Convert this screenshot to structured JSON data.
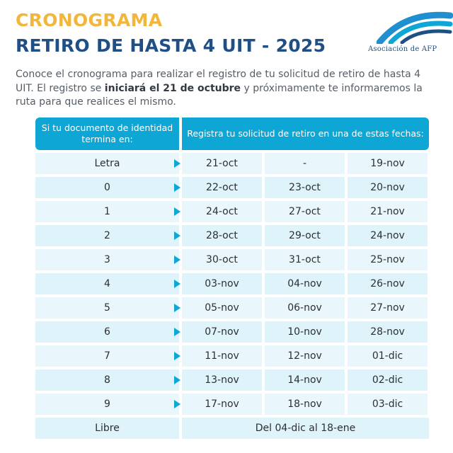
{
  "header": {
    "title_1": "CRONOGRAMA",
    "title_2": "RETIRO DE HASTA 4 UIT - 2025",
    "logo_text": "Asociación de AFP"
  },
  "intro": {
    "part_1": "Conoce el cronograma para realizar el registro de tu solicitud de retiro de hasta 4 UIT. El registro se ",
    "bold": "iniciará el 21 de octubre",
    "part_2": " y próximamente te informaremos la ruta para que realices el mismo."
  },
  "table": {
    "header_left": "Si tu documento de identidad termina en:",
    "header_right": "Registra tu solicitud de retiro en una de estas fechas:",
    "rows": [
      {
        "doc": "Letra",
        "d1": "21-oct",
        "d2": "-",
        "d3": "19-nov"
      },
      {
        "doc": "0",
        "d1": "22-oct",
        "d2": "23-oct",
        "d3": "20-nov"
      },
      {
        "doc": "1",
        "d1": "24-oct",
        "d2": "27-oct",
        "d3": "21-nov"
      },
      {
        "doc": "2",
        "d1": "28-oct",
        "d2": "29-oct",
        "d3": "24-nov"
      },
      {
        "doc": "3",
        "d1": "30-oct",
        "d2": "31-oct",
        "d3": "25-nov"
      },
      {
        "doc": "4",
        "d1": "03-nov",
        "d2": "04-nov",
        "d3": "26-nov"
      },
      {
        "doc": "5",
        "d1": "05-nov",
        "d2": "06-nov",
        "d3": "27-nov"
      },
      {
        "doc": "6",
        "d1": "07-nov",
        "d2": "10-nov",
        "d3": "28-nov"
      },
      {
        "doc": "7",
        "d1": "11-nov",
        "d2": "12-nov",
        "d3": "01-dic"
      },
      {
        "doc": "8",
        "d1": "13-nov",
        "d2": "14-nov",
        "d3": "02-dic"
      },
      {
        "doc": "9",
        "d1": "17-nov",
        "d2": "18-nov",
        "d3": "03-dic"
      }
    ],
    "last_row": {
      "doc": "Libre",
      "range": "Del 04-dic al 18-ene"
    }
  },
  "colors": {
    "accent_yellow": "#f2b63a",
    "brand_navy": "#1f4f84",
    "header_cyan": "#0ea6d4",
    "row_light": "#dff3fb"
  }
}
